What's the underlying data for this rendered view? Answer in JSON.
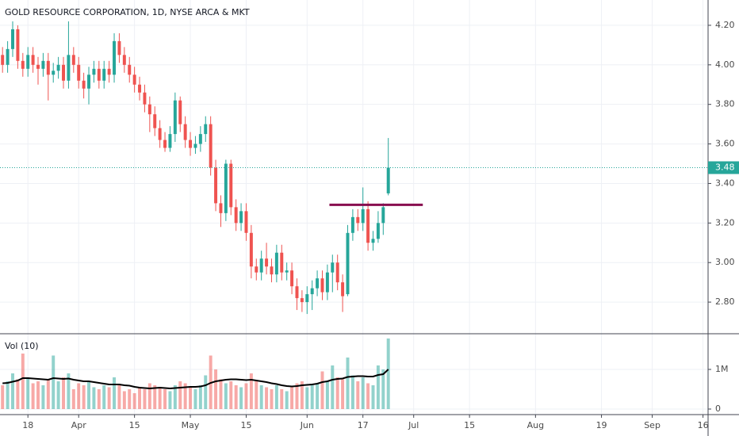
{
  "chart_data": {
    "type": "candlestick",
    "title": "GOLD RESOURCE CORPORATION, 1D, NYSE ARCA & MKT",
    "up_color": "#26a69a",
    "down_color": "#ef5350",
    "grid": true,
    "xlim": [
      -0.5,
      139.0
    ],
    "xticks": [
      {
        "value": 5,
        "label": "18"
      },
      {
        "value": 15,
        "label": "Apr"
      },
      {
        "value": 26,
        "label": "15"
      },
      {
        "value": 37,
        "label": "May"
      },
      {
        "value": 48,
        "label": "15"
      },
      {
        "value": 60,
        "label": "Jun"
      },
      {
        "value": 71,
        "label": "17"
      },
      {
        "value": 81,
        "label": "Jul"
      },
      {
        "value": 92,
        "label": "15"
      },
      {
        "value": 105,
        "label": "Aug"
      },
      {
        "value": 118,
        "label": "19"
      },
      {
        "value": 128,
        "label": "Sep"
      },
      {
        "value": 138,
        "label": "16"
      }
    ],
    "ylim": [
      2.644,
      4.328
    ],
    "yticks": [
      {
        "value": 2.8,
        "label": "2.80"
      },
      {
        "value": 3.0,
        "label": "3.00"
      },
      {
        "value": 3.2,
        "label": "3.20"
      },
      {
        "value": 3.4,
        "label": "3.40"
      },
      {
        "value": 3.6,
        "label": "3.60"
      },
      {
        "value": 3.8,
        "label": "3.80"
      },
      {
        "value": 4.0,
        "label": "4.00"
      },
      {
        "value": 4.2,
        "label": "4.20"
      }
    ],
    "last_price": {
      "value": 3.48,
      "label": "3.48"
    },
    "trendline": {
      "color": "#880e4f",
      "y": 3.292,
      "x": [
        64.4,
        82.8
      ]
    },
    "open": [
      4.05,
      4.0,
      4.08,
      4.18,
      4.02,
      3.98,
      4.05,
      4.0,
      3.98,
      4.02,
      3.95,
      3.97,
      4.0,
      3.92,
      4.05,
      4.0,
      3.92,
      3.88,
      3.95,
      3.98,
      3.92,
      3.98,
      3.95,
      4.12,
      4.05,
      4.0,
      3.95,
      3.9,
      3.86,
      3.8,
      3.75,
      3.68,
      3.62,
      3.58,
      3.65,
      3.82,
      3.7,
      3.62,
      3.58,
      3.6,
      3.65,
      3.7,
      3.48,
      3.3,
      3.25,
      3.5,
      3.28,
      3.2,
      3.26,
      3.15,
      2.98,
      2.95,
      3.02,
      2.98,
      2.94,
      3.05,
      2.95,
      2.96,
      2.88,
      2.82,
      2.8,
      2.84,
      2.87,
      2.92,
      2.85,
      2.95,
      3.0,
      2.9,
      2.84,
      3.15,
      3.23,
      3.2,
      3.27,
      3.1,
      3.12,
      3.2,
      3.35
    ],
    "high": [
      4.09,
      4.12,
      4.22,
      4.2,
      4.06,
      4.09,
      4.09,
      4.04,
      4.06,
      4.06,
      4.01,
      4.04,
      4.04,
      4.22,
      4.09,
      4.04,
      3.96,
      3.99,
      4.02,
      4.02,
      4.02,
      4.02,
      4.16,
      4.16,
      4.09,
      4.04,
      3.99,
      3.94,
      3.9,
      3.84,
      3.79,
      3.72,
      3.66,
      3.69,
      3.86,
      3.84,
      3.74,
      3.66,
      3.64,
      3.69,
      3.74,
      3.74,
      3.52,
      3.34,
      3.52,
      3.52,
      3.32,
      3.3,
      3.3,
      3.19,
      3.02,
      3.06,
      3.1,
      3.02,
      3.09,
      3.09,
      3.0,
      3.0,
      2.92,
      2.86,
      2.88,
      2.91,
      2.96,
      2.96,
      2.99,
      3.04,
      3.04,
      2.94,
      3.19,
      3.27,
      3.27,
      3.38,
      3.31,
      3.16,
      3.26,
      3.3,
      3.63
    ],
    "low": [
      3.96,
      3.96,
      4.04,
      3.98,
      3.94,
      3.94,
      3.96,
      3.9,
      3.94,
      3.82,
      3.91,
      3.93,
      3.88,
      3.88,
      3.96,
      3.88,
      3.83,
      3.8,
      3.91,
      3.88,
      3.88,
      3.91,
      3.91,
      4.01,
      3.96,
      3.91,
      3.86,
      3.82,
      3.76,
      3.66,
      3.64,
      3.58,
      3.56,
      3.56,
      3.61,
      3.66,
      3.58,
      3.54,
      3.55,
      3.56,
      3.61,
      3.44,
      3.26,
      3.18,
      3.21,
      3.24,
      3.16,
      3.16,
      3.11,
      2.92,
      2.91,
      2.91,
      2.94,
      2.9,
      2.9,
      2.91,
      2.91,
      2.84,
      2.76,
      2.75,
      2.74,
      2.76,
      2.83,
      2.81,
      2.81,
      2.85,
      2.86,
      2.75,
      2.83,
      3.11,
      3.16,
      3.16,
      3.06,
      3.06,
      3.1,
      3.14,
      3.34
    ],
    "close": [
      4.0,
      4.08,
      4.18,
      4.02,
      3.98,
      4.05,
      4.0,
      3.98,
      4.02,
      3.95,
      3.97,
      4.0,
      3.92,
      4.05,
      4.0,
      3.92,
      3.88,
      3.95,
      3.98,
      3.92,
      3.98,
      3.95,
      4.12,
      4.05,
      4.0,
      3.95,
      3.9,
      3.86,
      3.8,
      3.75,
      3.68,
      3.62,
      3.58,
      3.65,
      3.82,
      3.7,
      3.62,
      3.58,
      3.6,
      3.65,
      3.7,
      3.48,
      3.3,
      3.25,
      3.5,
      3.28,
      3.2,
      3.26,
      3.15,
      2.98,
      2.95,
      3.02,
      2.98,
      2.94,
      3.05,
      2.95,
      2.96,
      2.88,
      2.82,
      2.8,
      2.84,
      2.87,
      2.92,
      2.85,
      2.95,
      3.0,
      2.9,
      2.83,
      3.15,
      3.23,
      3.2,
      3.27,
      3.1,
      3.12,
      3.2,
      3.28,
      3.48
    ],
    "volume_label": "Vol (10)",
    "volume_ylim": [
      -120000,
      1880000
    ],
    "volume_yticks": [
      0,
      {
        "value": 1000000,
        "label": "1M"
      }
    ],
    "volume": [
      600000,
      700000,
      900000,
      750000,
      1400000,
      800000,
      650000,
      700000,
      600000,
      750000,
      1350000,
      700000,
      800000,
      900000,
      500000,
      650000,
      600000,
      700000,
      550000,
      500000,
      600000,
      550000,
      800000,
      600000,
      450000,
      500000,
      400000,
      550000,
      500000,
      650000,
      600000,
      550000,
      500000,
      450000,
      600000,
      700000,
      650000,
      550000,
      500000,
      600000,
      850000,
      1350000,
      1000000,
      750000,
      650000,
      700000,
      600000,
      550000,
      650000,
      900000,
      700000,
      600000,
      550000,
      500000,
      600000,
      500000,
      450000,
      550000,
      650000,
      700000,
      550000,
      600000,
      650000,
      950000,
      700000,
      1100000,
      800000,
      750000,
      1300000,
      850000,
      700000,
      800000,
      650000,
      600000,
      1100000,
      1000000,
      1780000
    ],
    "volume_ma_color": "#000000",
    "volume_ma": [
      650000,
      660000,
      690000,
      720000,
      780000,
      780000,
      770000,
      760000,
      750000,
      740000,
      780000,
      770000,
      760000,
      770000,
      740000,
      720000,
      700000,
      700000,
      680000,
      660000,
      640000,
      620000,
      620000,
      620000,
      600000,
      590000,
      560000,
      540000,
      530000,
      520000,
      530000,
      540000,
      530000,
      520000,
      530000,
      540000,
      550000,
      560000,
      560000,
      570000,
      600000,
      660000,
      700000,
      720000,
      740000,
      750000,
      750000,
      740000,
      730000,
      740000,
      720000,
      700000,
      680000,
      650000,
      630000,
      600000,
      580000,
      570000,
      580000,
      600000,
      610000,
      620000,
      640000,
      680000,
      700000,
      740000,
      760000,
      770000,
      810000,
      820000,
      830000,
      830000,
      820000,
      820000,
      860000,
      880000,
      1000000
    ]
  }
}
